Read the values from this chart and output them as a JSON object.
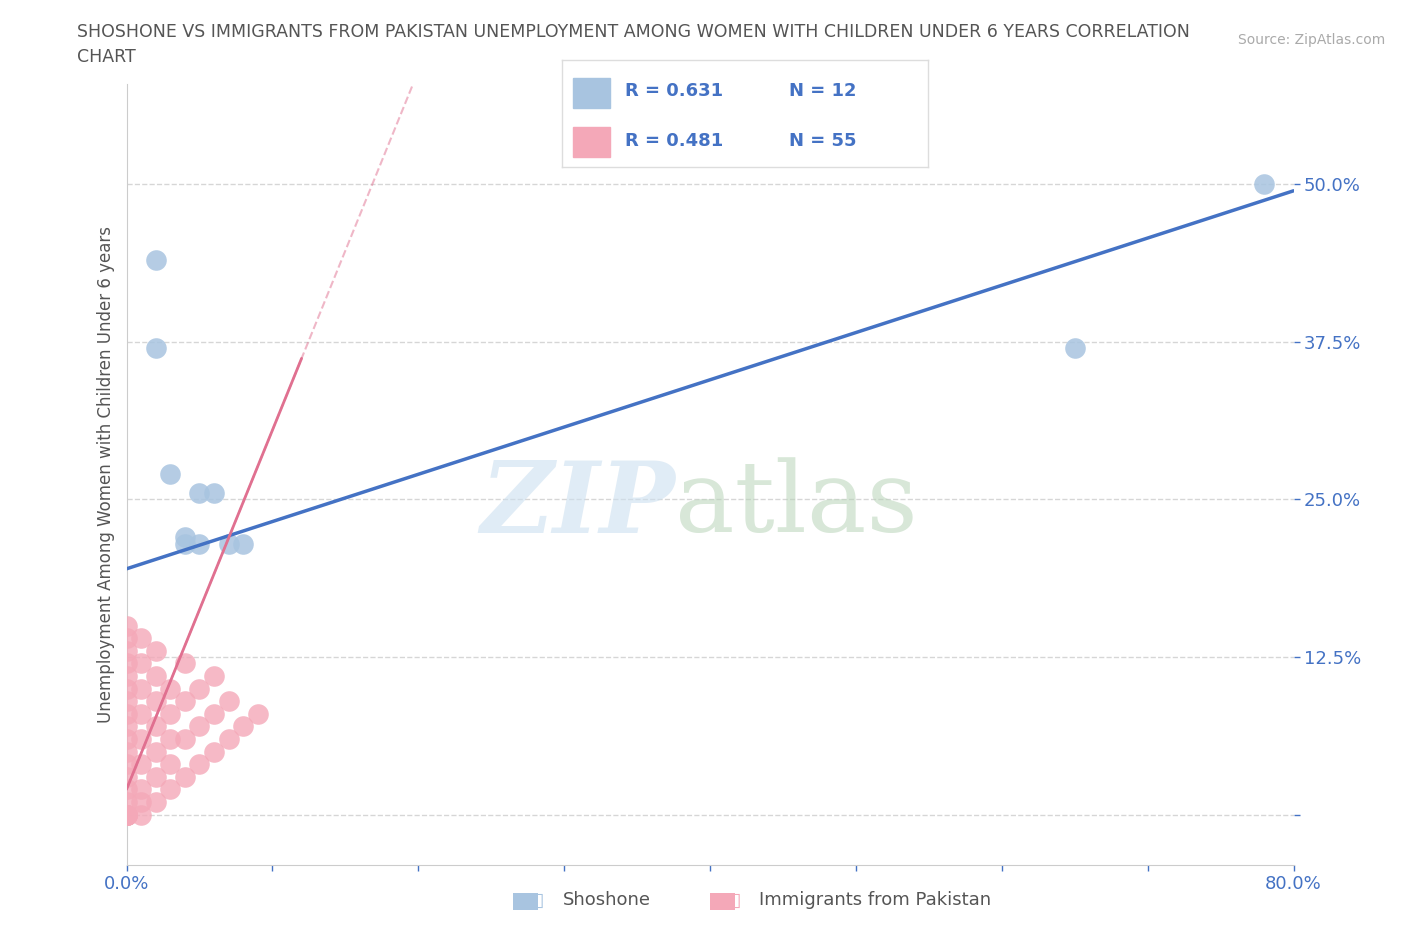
{
  "title_line1": "SHOSHONE VS IMMIGRANTS FROM PAKISTAN UNEMPLOYMENT AMONG WOMEN WITH CHILDREN UNDER 6 YEARS CORRELATION",
  "title_line2": "CHART",
  "source": "Source: ZipAtlas.com",
  "ylabel": "Unemployment Among Women with Children Under 6 years",
  "xlim": [
    0.0,
    0.8
  ],
  "ylim": [
    -0.04,
    0.58
  ],
  "xticks": [
    0.0,
    0.1,
    0.2,
    0.3,
    0.4,
    0.5,
    0.6,
    0.7,
    0.8
  ],
  "xticklabels": [
    "0.0%",
    "",
    "",
    "",
    "",
    "",
    "",
    "",
    "80.0%"
  ],
  "yticks": [
    0.0,
    0.125,
    0.25,
    0.375,
    0.5
  ],
  "yticklabels": [
    "",
    "12.5%",
    "25.0%",
    "37.5%",
    "50.0%"
  ],
  "blue_color": "#a8c4e0",
  "pink_color": "#f4a8b8",
  "blue_line_color": "#4472c4",
  "pink_line_color": "#e07090",
  "watermark_zip": "ZIP",
  "watermark_atlas": "atlas",
  "legend_entries": [
    {
      "color": "#a8c4e0",
      "R": "0.631",
      "N": "12"
    },
    {
      "color": "#f4a8b8",
      "R": "0.481",
      "N": "55"
    }
  ],
  "shoshone_x": [
    0.02,
    0.02,
    0.03,
    0.04,
    0.05,
    0.05,
    0.06,
    0.07,
    0.08,
    0.65,
    0.78,
    0.04
  ],
  "shoshone_y": [
    0.44,
    0.37,
    0.27,
    0.22,
    0.255,
    0.215,
    0.255,
    0.215,
    0.215,
    0.37,
    0.5,
    0.215
  ],
  "pakistan_x": [
    0.0,
    0.0,
    0.0,
    0.0,
    0.0,
    0.0,
    0.0,
    0.0,
    0.0,
    0.0,
    0.0,
    0.0,
    0.0,
    0.0,
    0.0,
    0.0,
    0.0,
    0.0,
    0.0,
    0.0,
    0.01,
    0.01,
    0.01,
    0.01,
    0.01,
    0.01,
    0.01,
    0.01,
    0.01,
    0.02,
    0.02,
    0.02,
    0.02,
    0.02,
    0.02,
    0.02,
    0.03,
    0.03,
    0.03,
    0.03,
    0.03,
    0.04,
    0.04,
    0.04,
    0.04,
    0.05,
    0.05,
    0.05,
    0.06,
    0.06,
    0.06,
    0.07,
    0.07,
    0.08,
    0.09
  ],
  "pakistan_y": [
    0.0,
    0.0,
    0.0,
    0.0,
    0.0,
    0.01,
    0.02,
    0.03,
    0.04,
    0.05,
    0.06,
    0.07,
    0.08,
    0.09,
    0.1,
    0.11,
    0.12,
    0.13,
    0.14,
    0.15,
    0.0,
    0.01,
    0.02,
    0.04,
    0.06,
    0.08,
    0.1,
    0.12,
    0.14,
    0.01,
    0.03,
    0.05,
    0.07,
    0.09,
    0.11,
    0.13,
    0.02,
    0.04,
    0.06,
    0.08,
    0.1,
    0.03,
    0.06,
    0.09,
    0.12,
    0.04,
    0.07,
    0.1,
    0.05,
    0.08,
    0.11,
    0.06,
    0.09,
    0.07,
    0.08
  ]
}
